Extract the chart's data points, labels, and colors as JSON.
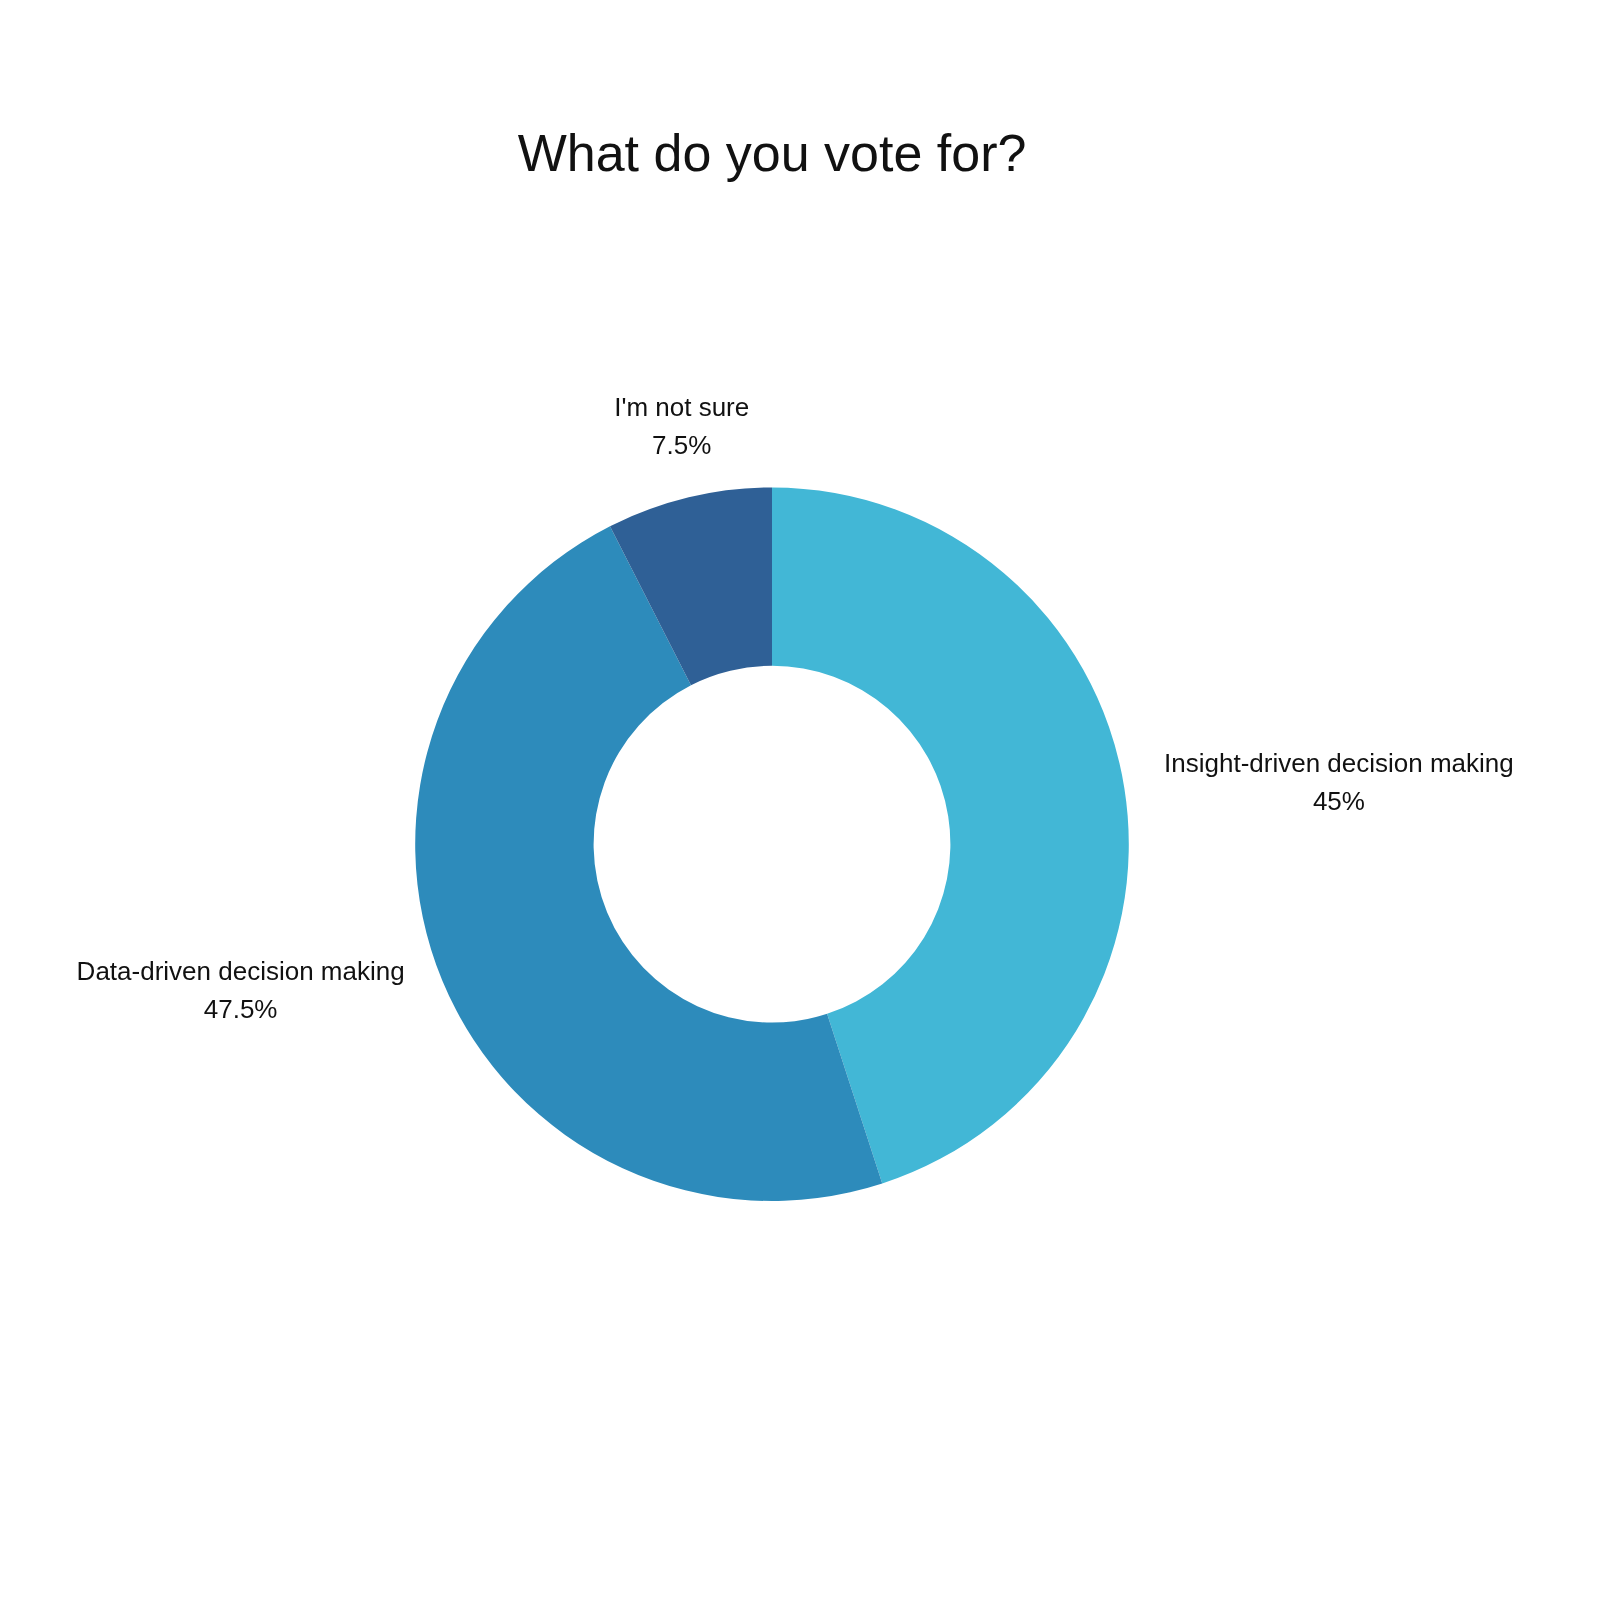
{
  "chart_data": {
    "type": "donut",
    "title": "What do you vote for?",
    "categories": [
      "Insight-driven decision making",
      "Data-driven decision making",
      "I'm not sure"
    ],
    "values": [
      45,
      47.5,
      7.5
    ],
    "colors": [
      "#42b7d6",
      "#2d8bbb",
      "#2f6096"
    ],
    "value_labels": [
      "45%",
      "47.5%",
      "7.5%"
    ],
    "legend": false
  }
}
